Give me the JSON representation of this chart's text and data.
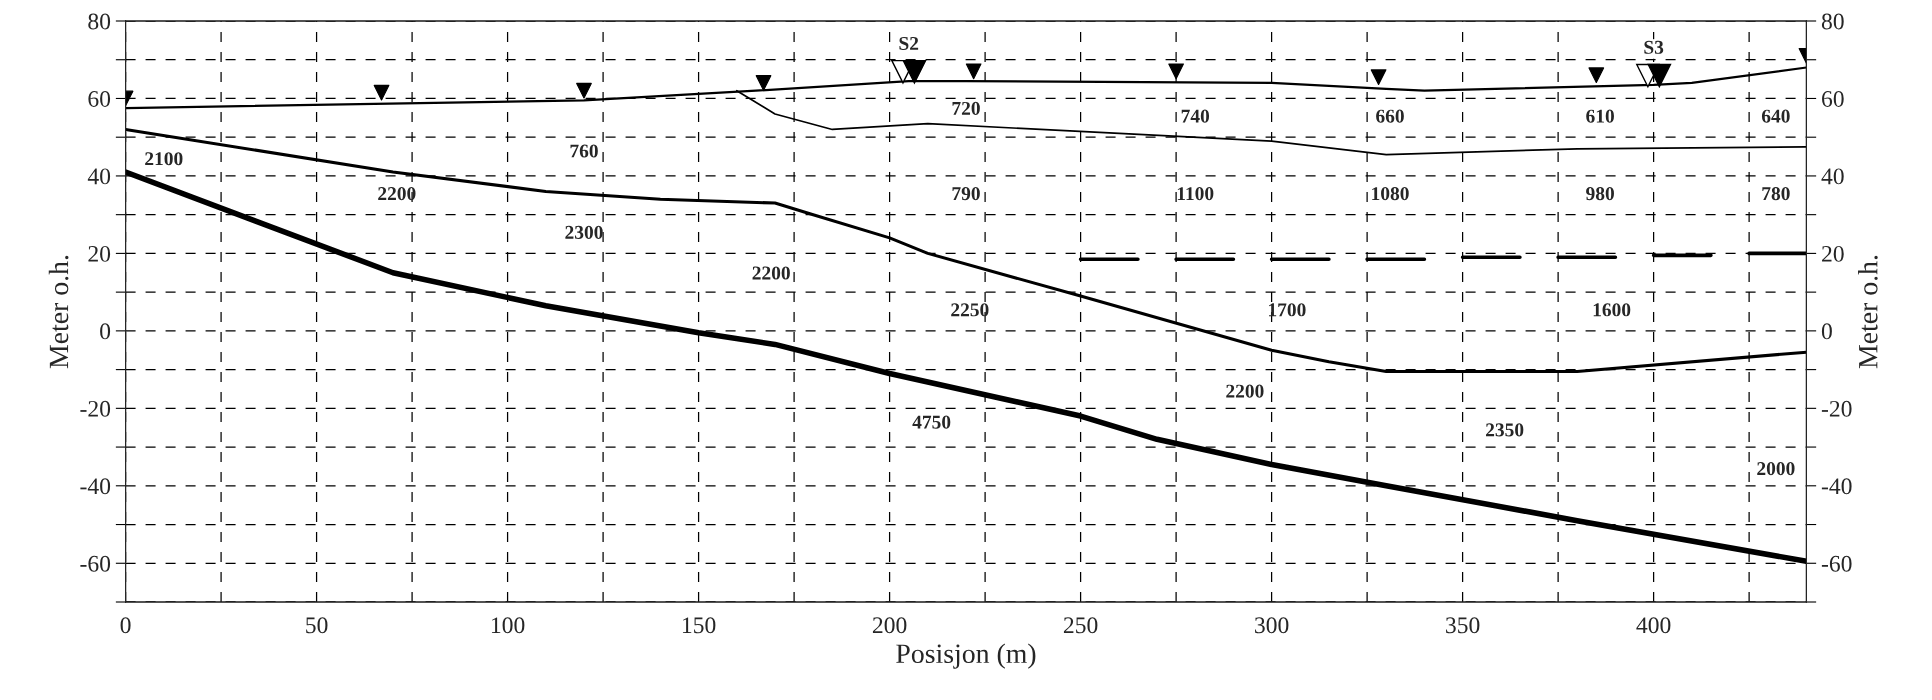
{
  "chart_data": {
    "type": "line",
    "xlabel": "Posisjon (m)",
    "ylabel": "Meter o.h.",
    "y2label": "Meter o.h.",
    "xlim": [
      0,
      440
    ],
    "ylim": [
      -70,
      80
    ],
    "y2lim": [
      -70,
      80
    ],
    "xticks": [
      0,
      {
        "value": 25,
        "label": null
      },
      50,
      {
        "value": 75,
        "label": null
      },
      100,
      {
        "value": 125,
        "label": null
      },
      150,
      {
        "value": 175,
        "label": null
      },
      200,
      {
        "value": 225,
        "label": null
      },
      250,
      {
        "value": 275,
        "label": null
      },
      300,
      {
        "value": 325,
        "label": null
      },
      350,
      {
        "value": 375,
        "label": null
      },
      400,
      {
        "value": 425,
        "label": null
      }
    ],
    "yticks": [
      {
        "value": -70,
        "label": null
      },
      -60,
      {
        "value": -50,
        "label": null
      },
      -40,
      {
        "value": -30,
        "label": null
      },
      -20,
      {
        "value": -10,
        "label": null
      },
      0,
      {
        "value": 10,
        "label": null
      },
      20,
      {
        "value": 30,
        "label": null
      },
      40,
      {
        "value": 50,
        "label": null
      },
      60,
      {
        "value": 70,
        "label": null
      },
      80
    ],
    "y2ticks": [
      {
        "value": -70,
        "label": null
      },
      -60,
      {
        "value": -50,
        "label": null
      },
      -40,
      {
        "value": -30,
        "label": null
      },
      -20,
      {
        "value": -10,
        "label": null
      },
      0,
      {
        "value": 10,
        "label": null
      },
      20,
      {
        "value": 30,
        "label": null
      },
      40,
      {
        "value": 50,
        "label": null
      },
      60,
      {
        "value": 70,
        "label": null
      },
      80
    ],
    "grid": true,
    "series": [
      {
        "color": "#000000",
        "x": [
          0,
          120,
          165,
          205,
          220,
          300,
          330,
          340,
          400,
          410,
          440
        ],
        "values": [
          57.5,
          59.5,
          62,
          64.5,
          64.5,
          64,
          62.5,
          62,
          63.5,
          64,
          68
        ]
      },
      {
        "color": "#000000",
        "x": [
          160,
          170,
          185,
          210,
          300,
          330,
          380,
          440
        ],
        "values": [
          62,
          56,
          52,
          53.5,
          49,
          45.5,
          47,
          47.5
        ]
      },
      {
        "color": "#000000",
        "x": [
          0,
          70,
          110,
          140,
          170,
          180,
          200,
          210,
          250,
          300,
          315,
          330,
          380,
          440
        ],
        "values": [
          52,
          41,
          36,
          34,
          33,
          30,
          24,
          20,
          9,
          -5,
          -8,
          -10.5,
          -10.5,
          -5.5
        ]
      },
      {
        "color": "#000000",
        "x": [
          0,
          70,
          110,
          150,
          170,
          200,
          250,
          270,
          300,
          330,
          380,
          440
        ],
        "values": [
          41,
          15,
          6.5,
          -0.5,
          -3.5,
          -11,
          -22,
          -28,
          -34.5,
          -40,
          -49,
          -59.5
        ]
      },
      {
        "color": "#000000",
        "x": [
          250,
          265,
          270,
          275,
          290,
          295,
          300,
          315,
          320,
          325,
          340,
          345,
          350,
          365,
          370,
          375,
          390,
          395,
          400,
          415,
          420,
          425,
          440
        ],
        "values": [
          18.5,
          18.5,
          null,
          18.5,
          18.5,
          null,
          18.5,
          18.5,
          null,
          18.5,
          18.5,
          null,
          19,
          19,
          null,
          19,
          19,
          null,
          19.5,
          19.5,
          null,
          20,
          20
        ]
      },
      {
        "type": "scatter",
        "color": "#000000",
        "marker": "triangle",
        "x": [
          0,
          67,
          120,
          167,
          222,
          275,
          328,
          385,
          440
        ],
        "values": [
          60,
          61.5,
          62,
          64,
          67,
          67,
          65.5,
          66,
          71
        ]
      }
    ],
    "annotations": [
      {
        "text": "S2",
        "x": 205,
        "y": 64.5
      },
      {
        "text": "S3",
        "x": 400,
        "y": 63.5
      },
      "2100",
      "760",
      "2200",
      "2300",
      "2200",
      "720",
      "740",
      "660",
      "610",
      "640",
      "790",
      "1100",
      "1080",
      "980",
      "780",
      "2250",
      "1700",
      "1600",
      "4750",
      "2200",
      "2350",
      "2000"
    ]
  }
}
